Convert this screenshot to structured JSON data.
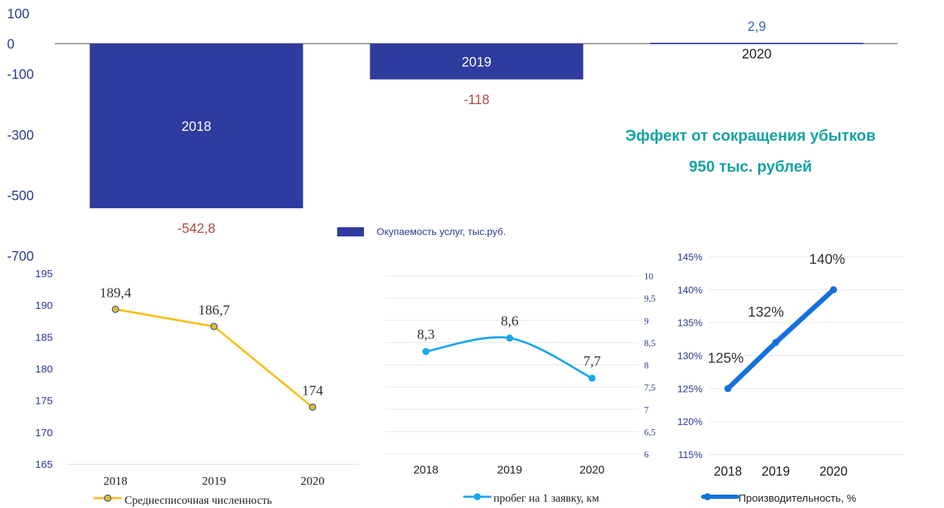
{
  "chart_data": [
    {
      "type": "bar",
      "categories": [
        "2018",
        "2019",
        "2020"
      ],
      "values": [
        -542.8,
        -118,
        2.9
      ],
      "value_labels": [
        "-542,8",
        "-118",
        "2,9"
      ],
      "y_ticks": [
        "100",
        "0",
        "-100",
        "-300",
        "-500",
        "-700"
      ],
      "legend": "Окупаемость услуг, тыс.руб.",
      "legend_position": "bottom",
      "annotation": [
        "Эффект от сокращения убытков",
        "950 тыс. рублей"
      ],
      "colors": {
        "bar": "#2F3C9F",
        "negative_label": "#B04A4A",
        "positive_label": "#3E6EA8",
        "annotation": "#17A3A3",
        "axis_text": "#2B3A8C"
      }
    },
    {
      "type": "line",
      "categories": [
        "2018",
        "2019",
        "2020"
      ],
      "series": [
        {
          "name": "Среднесписочная численность",
          "values": [
            189.4,
            186.7,
            174
          ]
        }
      ],
      "value_labels": [
        "189,4",
        "186,7",
        "174"
      ],
      "y_ticks": [
        "195",
        "190",
        "185",
        "180",
        "175",
        "170",
        "165"
      ],
      "ylim": [
        165,
        195
      ],
      "grid": false,
      "legend_position": "bottom",
      "colors": {
        "line": "#F7C11E",
        "marker_fill": "#F2B820",
        "marker_edge": "#3E6EA8"
      }
    },
    {
      "type": "line",
      "categories": [
        "2018",
        "2019",
        "2020"
      ],
      "series": [
        {
          "name": "пробег на 1 заявку, км",
          "values": [
            8.3,
            8.6,
            7.7
          ]
        }
      ],
      "value_labels": [
        "8,3",
        "8,6",
        "7,7"
      ],
      "y_ticks": [
        "10",
        "9,5",
        "9",
        "8,5",
        "8",
        "7,5",
        "7",
        "6,5",
        "6"
      ],
      "ylim": [
        6,
        10
      ],
      "y_axis_side": "right",
      "grid": true,
      "smooth": true,
      "legend_position": "bottom",
      "colors": {
        "line": "#1AA7EC"
      }
    },
    {
      "type": "line",
      "categories": [
        "2018",
        "2019",
        "2020"
      ],
      "series": [
        {
          "name": "Производительность, %",
          "values": [
            125,
            132,
            140
          ]
        }
      ],
      "value_labels": [
        "125%",
        "132%",
        "140%"
      ],
      "y_ticks": [
        "145%",
        "140%",
        "135%",
        "130%",
        "125%",
        "120%",
        "115%"
      ],
      "ylim": [
        115,
        145
      ],
      "grid": true,
      "legend_position": "bottom",
      "colors": {
        "line": "#1570DF"
      }
    }
  ]
}
